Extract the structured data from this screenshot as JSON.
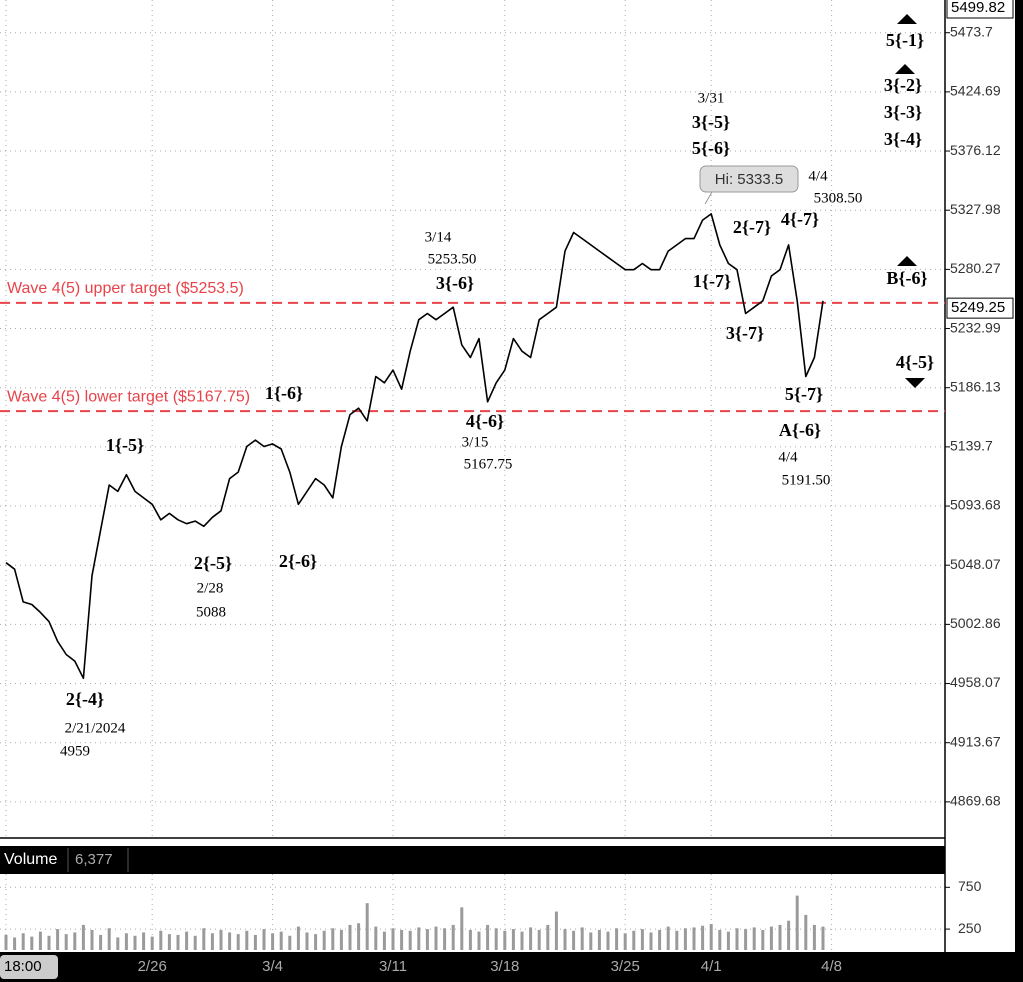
{
  "chart_data": [
    {
      "type": "line",
      "log_scale": true,
      "grid": true,
      "categories": [
        "18:00",
        null,
        null,
        null,
        null,
        null,
        null,
        null,
        null,
        null,
        null,
        null,
        null,
        null,
        null,
        null,
        null,
        "2/26",
        null,
        null,
        null,
        null,
        null,
        null,
        null,
        null,
        null,
        null,
        null,
        null,
        null,
        "3/4",
        null,
        null,
        null,
        null,
        null,
        null,
        null,
        null,
        null,
        null,
        null,
        null,
        null,
        "3/11",
        null,
        null,
        null,
        null,
        null,
        null,
        null,
        null,
        null,
        null,
        null,
        null,
        "3/18",
        null,
        null,
        null,
        null,
        null,
        null,
        null,
        null,
        null,
        null,
        null,
        null,
        null,
        "3/25",
        null,
        null,
        null,
        null,
        null,
        null,
        null,
        null,
        null,
        "4/1",
        null,
        null,
        null,
        null,
        null,
        null,
        null,
        null,
        null,
        null,
        null,
        null,
        null,
        "4/8"
      ],
      "series": [
        {
          "color": "#000000",
          "values": [
            5050,
            5045,
            5020,
            5018,
            5012,
            5005,
            4990,
            4980,
            4975,
            4962,
            5040,
            5075,
            5110,
            5105,
            5118,
            5105,
            5100,
            5095,
            5083,
            5088,
            5083,
            5080,
            5082,
            5078,
            5085,
            5090,
            5115,
            5120,
            5140,
            5145,
            5140,
            5142,
            5138,
            5120,
            5095,
            5105,
            5115,
            5110,
            5100,
            5140,
            5165,
            5170,
            5160,
            5195,
            5190,
            5200,
            5185,
            5215,
            5240,
            5245,
            5240,
            5245,
            5250,
            5220,
            5210,
            5225,
            5175,
            5190,
            5200,
            5225,
            5215,
            5210,
            5240,
            5245,
            5250,
            5295,
            5310,
            5305,
            5300,
            5295,
            5290,
            5285,
            5280,
            5280,
            5285,
            5280,
            5280,
            5295,
            5300,
            5305,
            5305,
            5320,
            5325,
            5300,
            5285,
            5280,
            5245,
            5250,
            5255,
            5275,
            5280,
            5300,
            5255,
            5195,
            5210,
            5255,
            null
          ]
        }
      ],
      "ylim": [
        4843,
        5501
      ],
      "yticks": [
        5473.7,
        5424.69,
        5376.12,
        5327.98,
        5280.27,
        5232.99,
        5186.13,
        5139.7,
        5093.68,
        5048.07,
        5002.86,
        4958.07,
        4913.67,
        4869.68
      ],
      "hlines": [
        {
          "value": 5253.5,
          "label": "Wave 4(5) upper target ($5253.5)"
        },
        {
          "value": 5167.75,
          "label": "Wave 4(5) lower target ($5167.75)"
        }
      ],
      "hline_color": "#e8434a",
      "price_markers": [
        5499.82,
        5249.25
      ],
      "annotations": [
        "2{-4}",
        "2/21/2024",
        "4959",
        "1{-5}",
        "2{-5}",
        "2/28",
        "5088",
        "2{-6}",
        "1{-6}",
        "3/14",
        "5253.50",
        "3{-6}",
        "4{-6}",
        "3/15",
        "5167.75",
        "3/31",
        "3{-5}",
        "5{-6}",
        "Hi: 5333.5",
        "4/4",
        "5308.50",
        "2{-7}",
        "4{-7}",
        "1{-7}",
        "3{-7}",
        "5{-7}",
        "A{-6}",
        "4/4",
        "5191.50",
        "5{-1}",
        "3{-2}",
        "3{-3}",
        "3{-4}",
        "B{-6}",
        "4{-5}"
      ]
    },
    {
      "type": "bar",
      "title": "Volume",
      "last_label": "6,377",
      "color": "#9a9a9a",
      "values": [
        180,
        150,
        200,
        160,
        220,
        170,
        250,
        190,
        210,
        300,
        240,
        180,
        260,
        150,
        200,
        170,
        210,
        160,
        230,
        190,
        180,
        220,
        170,
        260,
        200,
        240,
        210,
        190,
        230,
        180,
        250,
        200,
        220,
        170,
        280,
        210,
        190,
        230,
        260,
        240,
        300,
        320,
        560,
        280,
        220,
        260,
        240,
        230,
        270,
        250,
        280,
        260,
        300,
        510,
        240,
        220,
        300,
        260,
        230,
        250,
        220,
        270,
        240,
        300,
        460,
        250,
        230,
        270,
        210,
        240,
        220,
        260,
        200,
        230,
        250,
        210,
        240,
        280,
        230,
        260,
        270,
        290,
        310,
        240,
        220,
        260,
        250,
        270,
        240,
        280,
        300,
        350,
        650,
        420,
        300,
        280,
        null
      ],
      "ylim": [
        0,
        909
      ],
      "yticks": [
        750,
        250
      ]
    }
  ]
}
